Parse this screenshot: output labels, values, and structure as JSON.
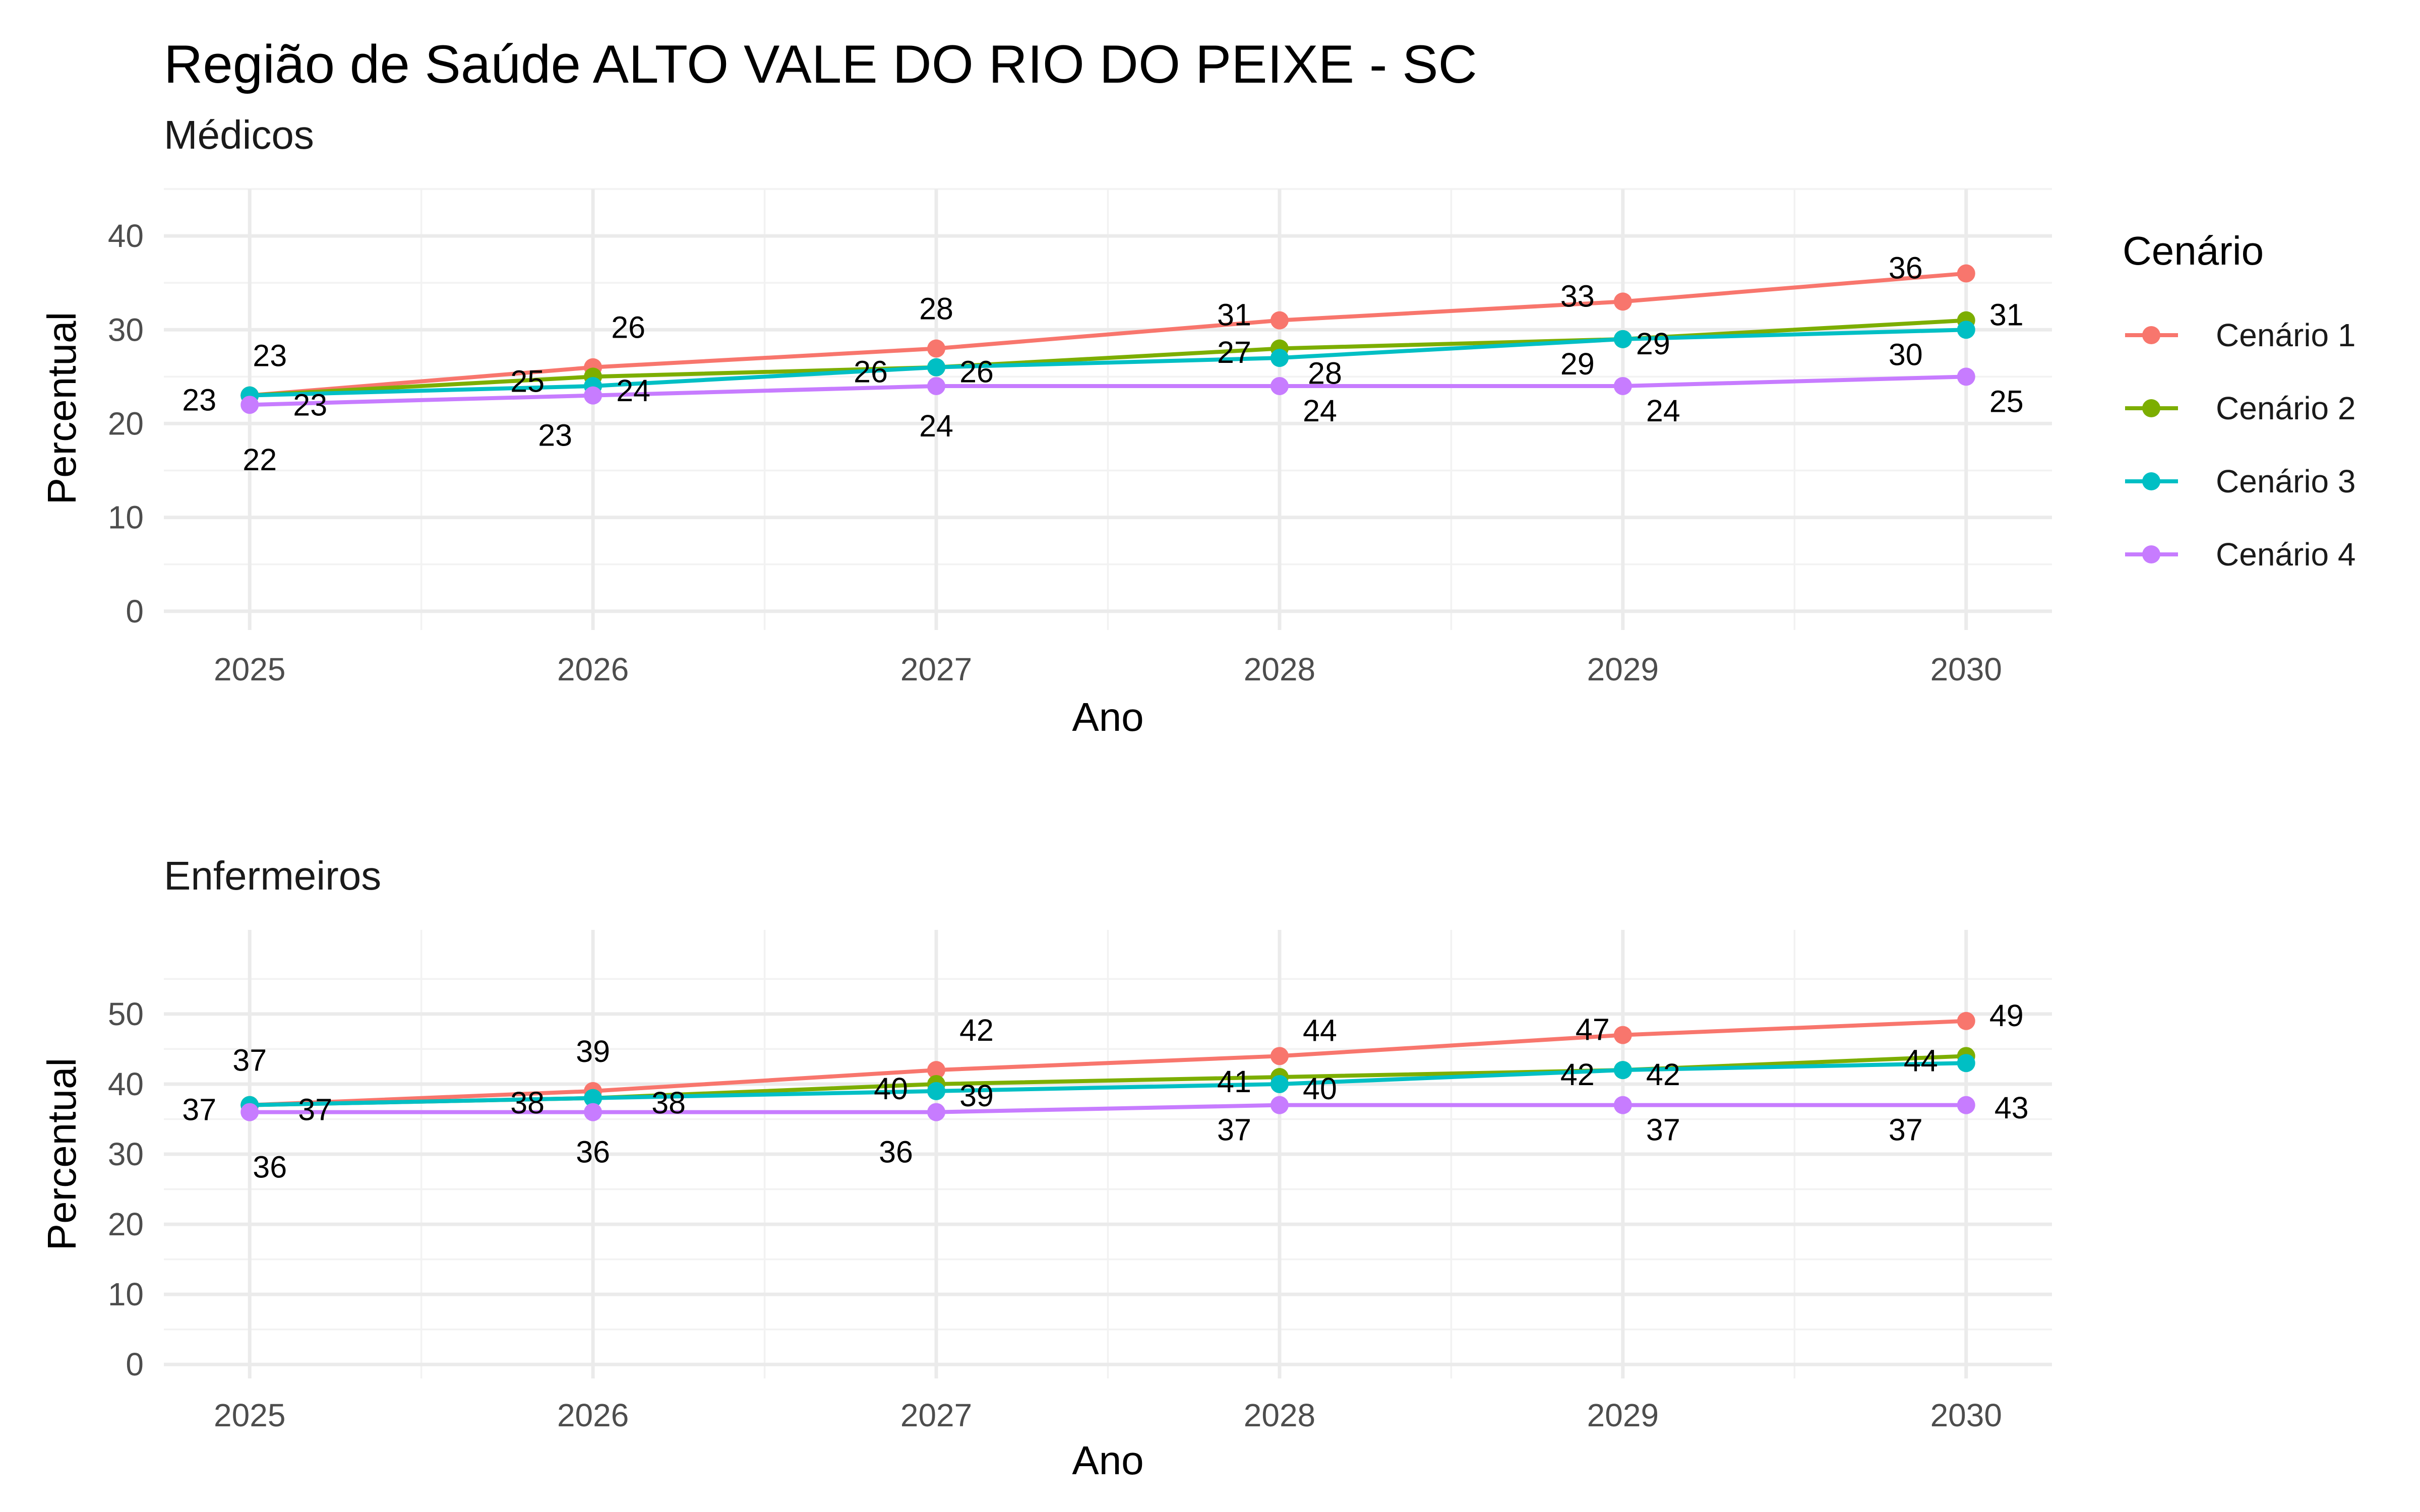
{
  "title": "Região de Saúde ALTO VALE DO RIO DO PEIXE - SC",
  "legend": {
    "title": "Cenário",
    "position": "right",
    "items": [
      {
        "label": "Cenário 1",
        "color": "#F8766D"
      },
      {
        "label": "Cenário 2",
        "color": "#7CAE00"
      },
      {
        "label": "Cenário 3",
        "color": "#00BFC4"
      },
      {
        "label": "Cenário 4",
        "color": "#C77CFF"
      }
    ]
  },
  "chart_data": [
    {
      "type": "line",
      "subtitle": "Médicos",
      "xlabel": "Ano",
      "ylabel": "Percentual",
      "x": [
        "2025",
        "2026",
        "2027",
        "2028",
        "2029",
        "2030"
      ],
      "yticks": [
        "0",
        "10",
        "20",
        "30",
        "40"
      ],
      "ylim": [
        -2,
        45
      ],
      "grid": true,
      "series": [
        {
          "name": "Cenário 1",
          "color": "#F8766D",
          "values": [
            23,
            26,
            28,
            31,
            33,
            36
          ]
        },
        {
          "name": "Cenário 2",
          "color": "#7CAE00",
          "values": [
            23,
            25,
            26,
            28,
            29,
            31
          ]
        },
        {
          "name": "Cenário 3",
          "color": "#00BFC4",
          "values": [
            23,
            24,
            26,
            27,
            29,
            30
          ]
        },
        {
          "name": "Cenário 4",
          "color": "#C77CFF",
          "values": [
            22,
            23,
            24,
            24,
            24,
            25
          ]
        }
      ]
    },
    {
      "type": "line",
      "subtitle": "Enfermeiros",
      "xlabel": "Ano",
      "ylabel": "Percentual",
      "x": [
        "2025",
        "2026",
        "2027",
        "2028",
        "2029",
        "2030"
      ],
      "yticks": [
        "0",
        "10",
        "20",
        "30",
        "40",
        "50"
      ],
      "ylim": [
        -2,
        62
      ],
      "grid": true,
      "series": [
        {
          "name": "Cenário 1",
          "color": "#F8766D",
          "values": [
            37,
            39,
            42,
            44,
            47,
            49
          ]
        },
        {
          "name": "Cenário 2",
          "color": "#7CAE00",
          "values": [
            37,
            38,
            40,
            41,
            42,
            44
          ]
        },
        {
          "name": "Cenário 3",
          "color": "#00BFC4",
          "values": [
            37,
            38,
            39,
            40,
            42,
            43
          ]
        },
        {
          "name": "Cenário 4",
          "color": "#C77CFF",
          "values": [
            36,
            36,
            36,
            37,
            37,
            37
          ]
        }
      ]
    }
  ]
}
